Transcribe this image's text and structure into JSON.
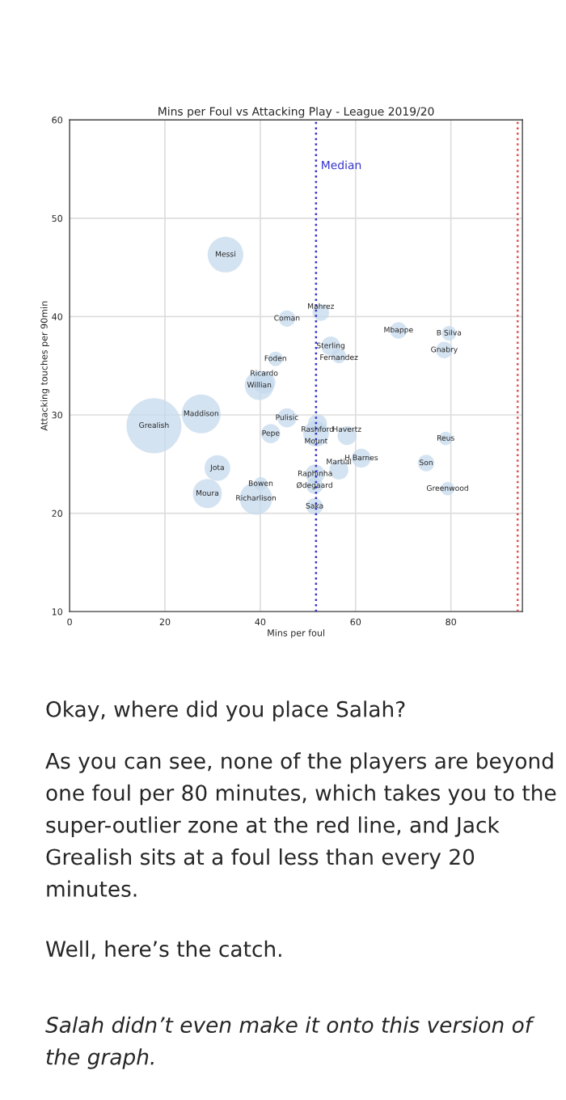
{
  "chart_data": {
    "type": "bubble",
    "title": "Mins per Foul vs Attacking Play - League 2019/20",
    "xlabel": "Mins per foul",
    "ylabel": "Attacking touches per 90min",
    "x": [
      32.7,
      45.6,
      52.7,
      69,
      79.6,
      78.6,
      54.8,
      56.5,
      43.2,
      39.8,
      40.8,
      45.6,
      52,
      51.7,
      42.2,
      58.2,
      78.9,
      61.2,
      74.8,
      51.5,
      51.4,
      56.5,
      27.6,
      17.7,
      31,
      40.1,
      28.9,
      39.1,
      51.4,
      79.3
    ],
    "values": [
      46.3,
      39.8,
      40.4,
      38.6,
      38.3,
      36.6,
      37,
      36,
      35.7,
      33,
      33.3,
      29.7,
      29.1,
      28.1,
      28.1,
      27.9,
      27.6,
      25.6,
      25.1,
      24,
      22.8,
      24.4,
      30.1,
      28.9,
      24.6,
      23,
      22,
      21.5,
      20.7,
      22.5
    ],
    "sizes": [
      0.42,
      0.09,
      0.09,
      0.09,
      0.07,
      0.09,
      0.12,
      0.07,
      0.07,
      0.28,
      0.17,
      0.12,
      0.12,
      0.22,
      0.12,
      0.12,
      0.06,
      0.12,
      0.09,
      0.12,
      0.09,
      0.12,
      0.5,
      1,
      0.22,
      0.06,
      0.28,
      0.35,
      0.09,
      0.06
    ],
    "color": "#c6d9ec",
    "xlim": [
      0,
      95
    ],
    "ylim": [
      10,
      60
    ],
    "xticks": [
      0,
      20,
      40,
      60,
      80
    ],
    "yticks": [
      10,
      20,
      30,
      40,
      50,
      60
    ],
    "grid": true,
    "ref_lines": [
      {
        "axis": "x",
        "value": 51.7,
        "label": "Median",
        "color": "#3333cc",
        "line_style": "dotted"
      },
      {
        "axis": "x",
        "value": 94,
        "label": null,
        "color": "#e05050",
        "line_style": "dotted"
      }
    ],
    "annotations": [
      {
        "text": "Messi",
        "x": 32.7,
        "y": 46.3
      },
      {
        "text": "Coman",
        "x": 45.6,
        "y": 39.8
      },
      {
        "text": "Mahrez",
        "x": 52.7,
        "y": 40.4
      },
      {
        "text": "Mbappe",
        "x": 69,
        "y": 38.6
      },
      {
        "text": "B Silva",
        "x": 79.6,
        "y": 38.3
      },
      {
        "text": "Gnabry",
        "x": 78.6,
        "y": 36.6
      },
      {
        "text": "Sterling",
        "x": 54.8,
        "y": 37
      },
      {
        "text": "Fernandez",
        "x": 56.5,
        "y": 36
      },
      {
        "text": "Foden",
        "x": 43.2,
        "y": 35.7
      },
      {
        "text": "Willian",
        "x": 39.8,
        "y": 33
      },
      {
        "text": "Ricardo",
        "x": 40.8,
        "y": 33.3
      },
      {
        "text": "Pulisic",
        "x": 45.6,
        "y": 29.7
      },
      {
        "text": "Rashford",
        "x": 52,
        "y": 29.1
      },
      {
        "text": "Mount",
        "x": 51.7,
        "y": 28.1
      },
      {
        "text": "Pepe",
        "x": 42.2,
        "y": 28.1
      },
      {
        "text": "Havertz",
        "x": 58.2,
        "y": 27.9
      },
      {
        "text": "Reus",
        "x": 78.9,
        "y": 27.6
      },
      {
        "text": "H Barnes",
        "x": 61.2,
        "y": 25.6
      },
      {
        "text": "Son",
        "x": 74.8,
        "y": 25.1
      },
      {
        "text": "Raphinha",
        "x": 51.5,
        "y": 24
      },
      {
        "text": "Ødegaard",
        "x": 51.4,
        "y": 22.8
      },
      {
        "text": "Martial",
        "x": 56.5,
        "y": 24.4
      },
      {
        "text": "Maddison",
        "x": 27.6,
        "y": 30.1
      },
      {
        "text": "Grealish",
        "x": 17.7,
        "y": 28.9
      },
      {
        "text": "Jota",
        "x": 31,
        "y": 24.6
      },
      {
        "text": "Bowen",
        "x": 40.1,
        "y": 23
      },
      {
        "text": "Moura",
        "x": 28.9,
        "y": 22
      },
      {
        "text": "Richarlison",
        "x": 39.1,
        "y": 21.5
      },
      {
        "text": "Saka",
        "x": 51.4,
        "y": 20.7
      },
      {
        "text": "Greenwood",
        "x": 79.3,
        "y": 22.5
      },
      "Okay, where did you place Salah?",
      "As you can see, none of the players are beyond one foul per 80 minutes, which takes you to the super-outlier zone at the red line, and Jack Grealish sits at a foul less than every 20 minutes.",
      "Well, here’s the catch.",
      "Salah didn’t even make it onto this version of the graph."
    ]
  }
}
